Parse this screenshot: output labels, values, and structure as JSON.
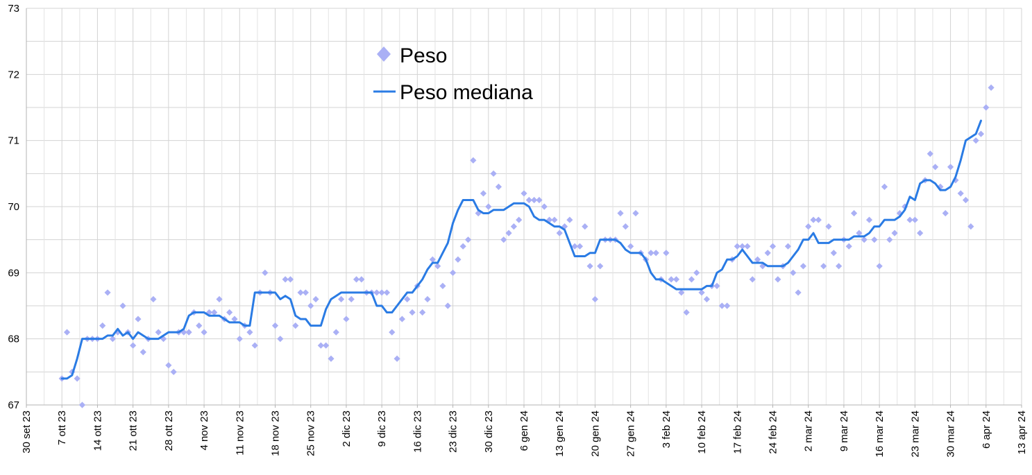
{
  "chart_data": {
    "type": "line",
    "x_axis": {
      "kind": "date",
      "range": [
        "2023-09-30",
        "2024-04-13"
      ],
      "tick_labels": [
        "30 set 23",
        "7 ott 23",
        "14 ott 23",
        "21 ott 23",
        "28 ott 23",
        "4 nov 23",
        "11 nov 23",
        "18 nov 23",
        "25 nov 23",
        "2 dic 23",
        "9 dic 23",
        "16 dic 23",
        "23 dic 23",
        "30 dic 23",
        "6 gen 24",
        "13 gen 24",
        "20 gen 24",
        "27 gen 24",
        "3 feb 24",
        "10 feb 24",
        "17 feb 24",
        "24 feb 24",
        "2 mar 24",
        "9 mar 24",
        "16 mar 24",
        "23 mar 24",
        "30 mar 24",
        "6 apr 24",
        "13 apr 24"
      ],
      "tick_step_days": 7
    },
    "y_axis": {
      "range": [
        67,
        73
      ],
      "tick_labels": [
        "67",
        "68",
        "69",
        "70",
        "71",
        "72",
        "73"
      ]
    },
    "grid": {
      "x": true,
      "y": true,
      "minor_x": true,
      "minor_y": true
    },
    "legend": {
      "position": "top-center",
      "items": [
        {
          "label": "Peso",
          "marker": "diamond",
          "color": "#aab0f5"
        },
        {
          "label": "Peso mediana",
          "marker": "line",
          "color": "#2a7be4"
        }
      ]
    },
    "series": [
      {
        "name": "Peso",
        "style": "scatter",
        "color": "#aab0f5",
        "y": [
          67.4,
          68.1,
          67.5,
          67.4,
          67.0,
          68.0,
          68.0,
          68.0,
          68.2,
          68.7,
          68.0,
          68.1,
          68.5,
          68.1,
          67.9,
          68.3,
          67.8,
          68.0,
          68.6,
          68.1,
          68.0,
          67.6,
          67.5,
          68.1,
          68.1,
          68.1,
          68.4,
          68.2,
          68.1,
          68.4,
          68.4,
          68.6,
          68.3,
          68.4,
          68.3,
          68.0,
          68.2,
          68.1,
          67.9,
          68.7,
          69.0,
          68.7,
          68.2,
          68.0,
          68.9,
          68.9,
          68.2,
          68.7,
          68.7,
          68.5,
          68.6,
          67.9,
          67.9,
          67.7,
          68.1,
          68.6,
          68.3,
          68.6,
          68.9,
          68.9,
          68.7,
          68.7,
          68.7,
          68.7,
          68.7,
          68.1,
          67.7,
          68.3,
          68.6,
          68.4,
          68.8,
          68.4,
          68.6,
          69.2,
          69.1,
          68.8,
          68.5,
          69.0,
          69.2,
          69.4,
          69.5,
          70.7,
          69.9,
          70.2,
          70.0,
          70.5,
          70.3,
          69.5,
          69.6,
          69.7,
          69.8,
          70.2,
          70.1,
          70.1,
          70.1,
          70.0,
          69.8,
          69.8,
          69.6,
          69.7,
          69.8,
          69.4,
          69.4,
          69.7,
          69.1,
          68.6,
          69.1,
          69.5,
          69.5,
          69.5,
          69.9,
          69.7,
          69.4,
          69.9,
          69.3,
          69.2,
          69.3,
          69.3,
          68.9,
          69.3,
          68.9,
          68.9,
          68.7,
          68.4,
          68.9,
          69.0,
          68.7,
          68.6,
          68.8,
          68.8,
          68.5,
          68.5,
          69.2,
          69.4,
          69.4,
          69.4,
          68.9,
          69.2,
          69.1,
          69.3,
          69.4,
          68.9,
          69.1,
          69.4,
          69.0,
          68.7,
          69.1,
          69.7,
          69.8,
          69.8,
          69.1,
          69.7,
          69.3,
          69.1,
          69.5,
          69.4,
          69.9,
          69.6,
          69.5,
          69.8,
          69.5,
          69.1,
          70.3,
          69.5,
          69.6,
          69.9,
          70.0,
          69.8,
          69.8,
          69.6,
          70.4,
          70.8,
          70.6,
          70.3,
          69.9,
          70.6,
          70.4,
          70.2,
          70.1,
          69.7,
          71.0,
          71.1,
          71.5,
          71.8
        ]
      },
      {
        "name": "Peso mediana",
        "style": "line",
        "color": "#2a7be4",
        "y": [
          67.4,
          67.4,
          67.45,
          67.7,
          68.0,
          68.0,
          68.0,
          68.0,
          68.0,
          68.05,
          68.05,
          68.15,
          68.05,
          68.1,
          68.0,
          68.1,
          68.05,
          68.0,
          68.0,
          68.0,
          68.05,
          68.1,
          68.1,
          68.1,
          68.15,
          68.35,
          68.4,
          68.4,
          68.4,
          68.35,
          68.35,
          68.35,
          68.3,
          68.25,
          68.25,
          68.25,
          68.2,
          68.2,
          68.7,
          68.7,
          68.7,
          68.7,
          68.7,
          68.6,
          68.65,
          68.6,
          68.35,
          68.3,
          68.3,
          68.2,
          68.2,
          68.2,
          68.45,
          68.6,
          68.65,
          68.7,
          68.7,
          68.7,
          68.7,
          68.7,
          68.7,
          68.7,
          68.5,
          68.5,
          68.4,
          68.4,
          68.5,
          68.6,
          68.7,
          68.7,
          68.8,
          68.9,
          69.05,
          69.15,
          69.15,
          69.3,
          69.45,
          69.75,
          69.95,
          70.1,
          70.1,
          70.1,
          69.95,
          69.9,
          69.9,
          69.95,
          69.95,
          69.95,
          70.0,
          70.05,
          70.05,
          70.05,
          70.0,
          69.85,
          69.8,
          69.8,
          69.75,
          69.7,
          69.7,
          69.65,
          69.45,
          69.25,
          69.25,
          69.25,
          69.3,
          69.3,
          69.5,
          69.5,
          69.5,
          69.5,
          69.45,
          69.35,
          69.3,
          69.3,
          69.3,
          69.2,
          69.0,
          68.9,
          68.9,
          68.85,
          68.8,
          68.75,
          68.75,
          68.75,
          68.75,
          68.75,
          68.75,
          68.8,
          68.8,
          69.0,
          69.05,
          69.2,
          69.2,
          69.25,
          69.35,
          69.25,
          69.15,
          69.15,
          69.15,
          69.1,
          69.1,
          69.1,
          69.1,
          69.15,
          69.25,
          69.35,
          69.5,
          69.5,
          69.6,
          69.45,
          69.45,
          69.45,
          69.5,
          69.5,
          69.5,
          69.5,
          69.55,
          69.55,
          69.55,
          69.6,
          69.7,
          69.7,
          69.8,
          69.8,
          69.8,
          69.85,
          69.95,
          70.15,
          70.1,
          70.35,
          70.4,
          70.4,
          70.35,
          70.25,
          70.25,
          70.3,
          70.45,
          70.7,
          71.0,
          71.05,
          71.1,
          71.3
        ]
      }
    ]
  }
}
